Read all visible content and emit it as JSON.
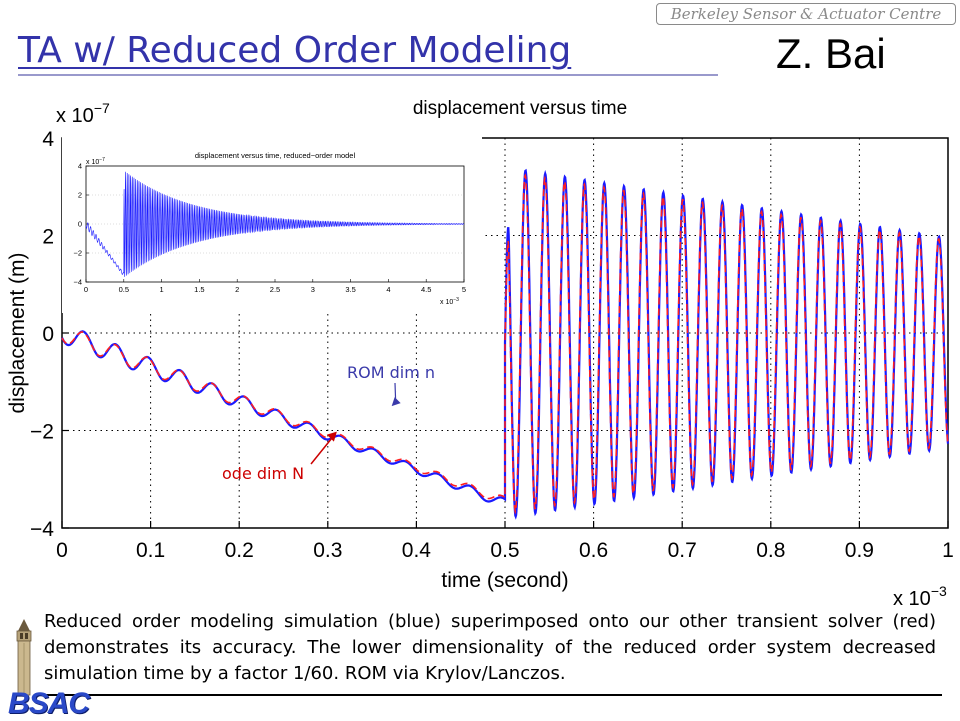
{
  "slide": {
    "title": "TA w/ Reduced Order Modeling",
    "author": "Z. Bai",
    "banner": "Berkeley Sensor & Actuator Centre",
    "caption": "Reduced order modeling simulation (blue) superimposed onto our other transient solver (red) demonstrates its accuracy. The lower dimensionality of the reduced order system decreased simulation time by a factor 1/60. ROM via Krylov/Lanczos.",
    "logo_text": "BSAC"
  },
  "colors": {
    "title": "#3333aa",
    "rom_series": "#1a1aff",
    "ode_series": "#ff2020",
    "annotation_blue": "#3a3aaa",
    "annotation_red": "#cc0000"
  },
  "icons": {
    "logo": "campanile-tower-icon"
  },
  "chart_data": [
    {
      "type": "line",
      "title": "displacement versus time",
      "xlabel": "time (second)",
      "ylabel": "displacement (m)",
      "x_multiplier": "x 10",
      "x_exponent": "−3",
      "y_multiplier": "x 10",
      "y_exponent": "−7",
      "xlim": [
        0,
        1
      ],
      "ylim": [
        -4,
        4
      ],
      "x_ticks": [
        0,
        0.1,
        0.2,
        0.3,
        0.4,
        0.5,
        0.6,
        0.7,
        0.8,
        0.9,
        1
      ],
      "x_tick_labels": [
        "0",
        "0.1",
        "0.2",
        "0.3",
        "0.4",
        "0.5",
        "0.6",
        "0.7",
        "0.8",
        "0.9",
        "1"
      ],
      "y_ticks": [
        -4,
        -2,
        0,
        2,
        4
      ],
      "y_tick_labels": [
        "−4",
        "−2",
        "0",
        "2",
        "4"
      ],
      "grid": "dotted",
      "series": [
        {
          "key": "ode",
          "description": "Transient solver (red)",
          "segments": [
            {
              "x0": 0,
              "x1": 0.5,
              "y0": 0,
              "y1": -3.45,
              "amp": 0.18,
              "f": 27.5,
              "phi": 0.6
            },
            {
              "x0": 0.5,
              "x1": 1,
              "center": -0.2,
              "amp0": 3.5,
              "amp1": 2.1,
              "f": 45,
              "phi": 1.2
            }
          ]
        },
        {
          "key": "rom",
          "description": "Reduced order model (blue)",
          "segments": [
            {
              "x0": 0,
              "x1": 0.5,
              "y0": 0,
              "y1": -3.5,
              "amp": 0.2,
              "f": 27.5,
              "phi": 0.5
            },
            {
              "x0": 0.5,
              "x1": 1,
              "center": -0.2,
              "amp0": 3.6,
              "amp1": 2.15,
              "f": 45,
              "phi": 1.1
            }
          ]
        }
      ],
      "annotations": [
        {
          "text": "ROM dim n",
          "color_key": "annotation_blue",
          "point": [
            0.345,
            -1.5
          ]
        },
        {
          "text": "ode dim N",
          "color_key": "annotation_red",
          "point": [
            0.308,
            -1.9
          ]
        }
      ]
    },
    {
      "type": "line",
      "title": "displacement versus time, reduced−order model",
      "x_multiplier": "x 10",
      "x_exponent": "−3",
      "y_multiplier": "x 10",
      "y_exponent": "−7",
      "xlim": [
        0,
        5
      ],
      "ylim": [
        -4,
        4
      ],
      "x_ticks": [
        0,
        0.5,
        1,
        1.5,
        2,
        2.5,
        3,
        3.5,
        4,
        4.5,
        5
      ],
      "x_tick_labels": [
        "0",
        "0.5",
        "1",
        "1.5",
        "2",
        "2.5",
        "3",
        "3.5",
        "4",
        "4.5",
        "5"
      ],
      "y_ticks": [
        -4,
        -2,
        0,
        2,
        4
      ],
      "y_tick_labels": [
        "−4",
        "−2",
        "0",
        "2",
        "4"
      ],
      "series": [
        {
          "key": "rom",
          "description": "Reduced order model",
          "segments": [
            {
              "x0": 0,
              "x1": 0.5,
              "y0": 0,
              "y1": -3.5,
              "amp": 0.25,
              "f": 27.5,
              "phi": 0.5
            },
            {
              "x0": 0.5,
              "x1": 5,
              "center": 0,
              "amp0": 3.7,
              "decay": 0.9,
              "f": 45,
              "phi": 1.1
            }
          ]
        }
      ]
    }
  ]
}
